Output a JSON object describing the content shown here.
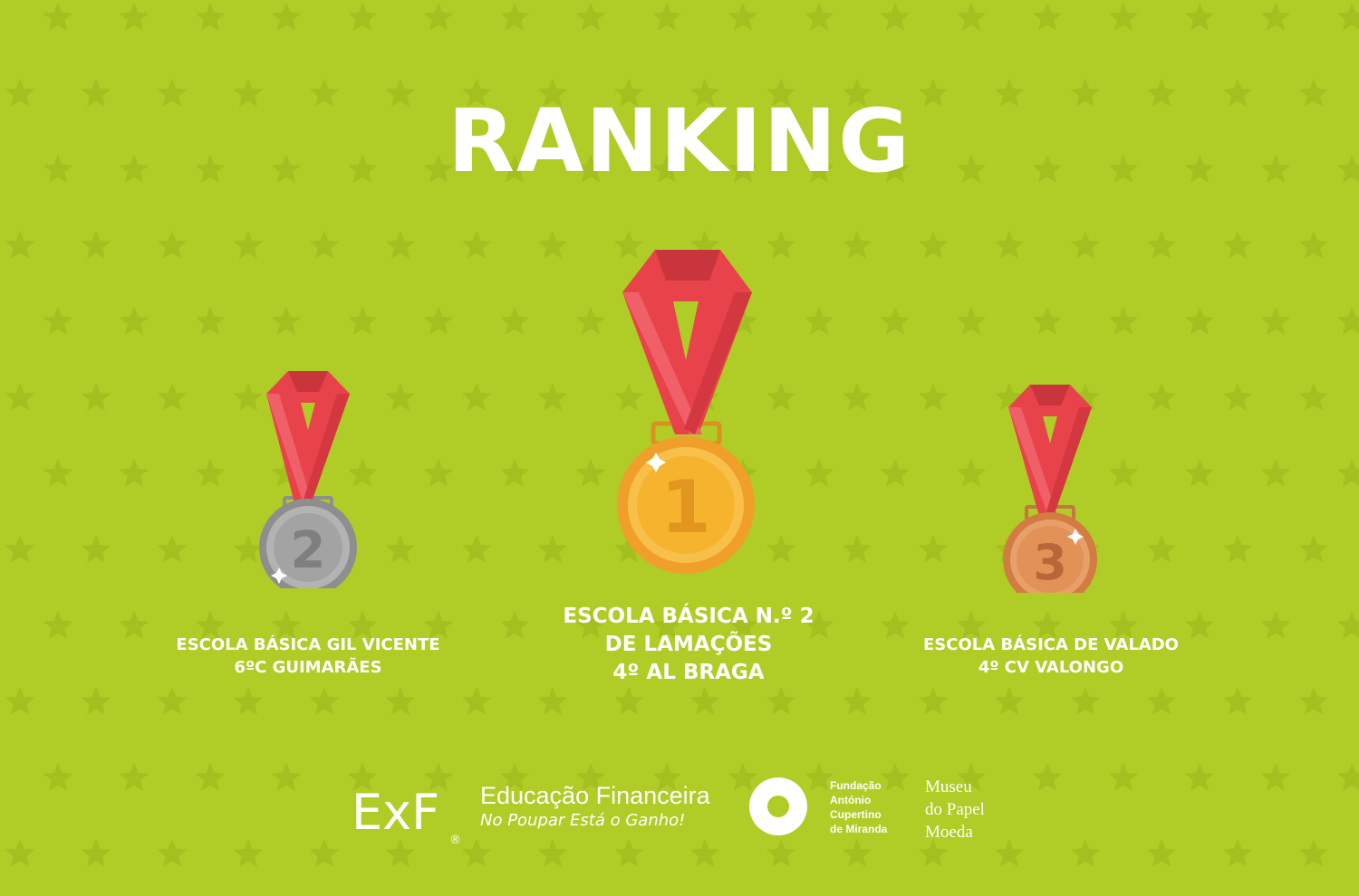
{
  "title": "RANKING",
  "colors": {
    "background": "#b0cc26",
    "star": "#a3bf20",
    "ribbon": "#e8424a",
    "gold": "#f6b42e",
    "silver": "#b3b3b3",
    "bronze": "#e39257"
  },
  "podium": [
    {
      "place": "2",
      "medal": "silver",
      "lines": [
        "ESCOLA BÁSICA GIL VICENTE",
        "6ºC GUIMARÃES"
      ]
    },
    {
      "place": "1",
      "medal": "gold",
      "lines": [
        "ESCOLA BÁSICA N.º 2",
        "DE LAMAÇÕES",
        "4º AL BRAGA"
      ]
    },
    {
      "place": "3",
      "medal": "bronze",
      "lines": [
        "ESCOLA BÁSICA DE VALADO",
        "4º CV VALONGO"
      ]
    }
  ],
  "footer": {
    "exf_logo": "ExF",
    "exf_registered": "®",
    "exf_title": "Educação Financeira",
    "exf_slogan": "No Poupar Está o Ganho!",
    "fundacao_lines": [
      "Fundação",
      "António",
      "Cupertino",
      "de Miranda"
    ],
    "museu_lines": [
      "Museu",
      "do Papel",
      "Moeda"
    ]
  }
}
